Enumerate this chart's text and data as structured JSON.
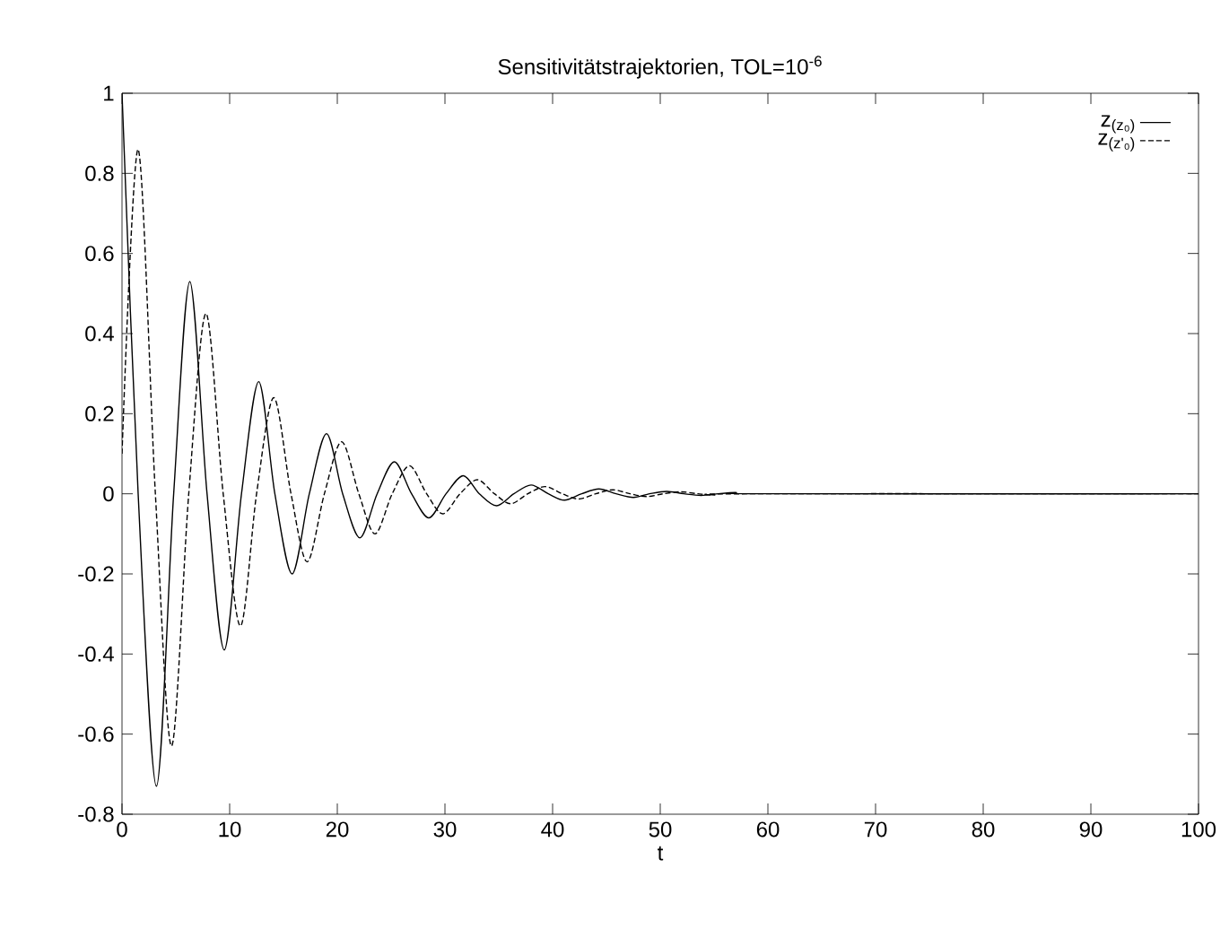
{
  "chart_data": {
    "type": "line",
    "title": "Sensitivitätstrajektorien, TOL=10$^{-6}$",
    "xlabel": "t",
    "xlim": [
      0,
      100
    ],
    "xticks": [
      0,
      10,
      20,
      30,
      40,
      50,
      60,
      70,
      80,
      90,
      100
    ],
    "ylim": [
      -0.8,
      1
    ],
    "yticks": [
      -0.8,
      -0.6,
      -0.4,
      -0.2,
      0,
      0.2,
      0.4,
      0.6,
      0.8,
      1
    ],
    "legend": "top right",
    "grid": false,
    "series": [
      {
        "name": "z$_{(z₀)}$",
        "color": "#000000",
        "line_style": "solid",
        "x": [
          0,
          1.5,
          3.2,
          4.8,
          6.3,
          7.9,
          9.5,
          11.1,
          12.7,
          14.2,
          15.8,
          17.4,
          19,
          20.5,
          22.1,
          23.7,
          25.3,
          26.9,
          28.5,
          30.1,
          31.7,
          33.2,
          34.8,
          36.4,
          38,
          39.6,
          41.1,
          42.7,
          44.3,
          45.9,
          47.5,
          49,
          50.6,
          52.2,
          53.8,
          55.4,
          57,
          60,
          100
        ],
        "values": [
          1,
          0,
          -0.73,
          0,
          0.53,
          0,
          -0.39,
          0,
          0.28,
          0,
          -0.2,
          0,
          0.15,
          0,
          -0.11,
          0,
          0.08,
          0,
          -0.06,
          0,
          0.045,
          0,
          -0.03,
          0,
          0.022,
          0,
          -0.016,
          0,
          0.012,
          0,
          -0.009,
          0,
          0.006,
          0,
          -0.004,
          0,
          0.003,
          0,
          0
        ]
      },
      {
        "name": "z$_{(z'₀)}$",
        "color": "#000000",
        "line_style": "dashed",
        "x": [
          0,
          1.5,
          3.1,
          4.6,
          6.2,
          7.8,
          9.4,
          11,
          12.5,
          14.1,
          15.7,
          17.2,
          18.8,
          20.4,
          22,
          23.5,
          25.1,
          26.7,
          28.3,
          29.8,
          31.4,
          33,
          34.6,
          36.1,
          37.7,
          39.3,
          40.9,
          42.4,
          44,
          45.6,
          47.2,
          48.7,
          50.3,
          51.9,
          53.5,
          55,
          58,
          100
        ],
        "values": [
          0.1,
          0.86,
          0,
          -0.63,
          0,
          0.45,
          0,
          -0.33,
          0,
          0.24,
          0,
          -0.17,
          0,
          0.13,
          0,
          -0.1,
          0,
          0.07,
          0,
          -0.05,
          0,
          0.035,
          0,
          -0.025,
          0,
          0.018,
          0,
          -0.013,
          0,
          0.01,
          0,
          -0.007,
          0,
          0.005,
          0,
          -0.003,
          0,
          0
        ]
      }
    ]
  }
}
